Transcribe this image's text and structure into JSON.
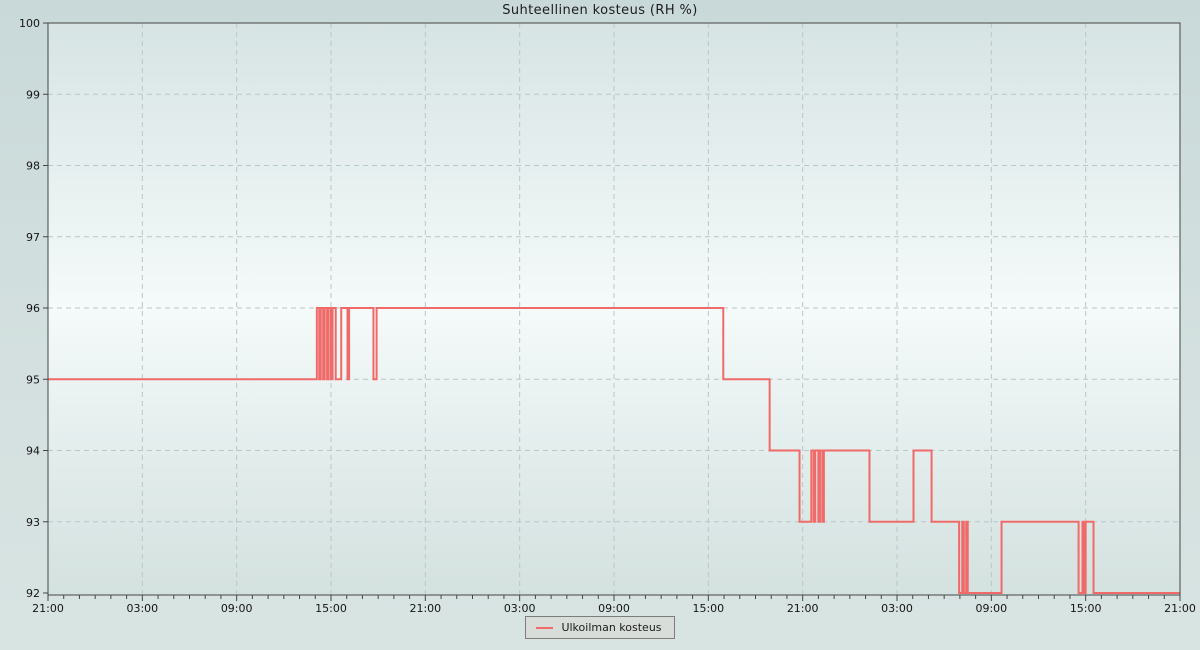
{
  "chart_data": {
    "type": "line",
    "step": true,
    "title": "Suhteellinen kosteus (RH %)",
    "legend_position": "bottom-center",
    "grid": "dashed",
    "x_axis": {
      "unit": "hours",
      "range": [
        0,
        72
      ],
      "major_tick_hours": 6,
      "minor_tick_hours": 1,
      "labels": [
        "21:00",
        "03:00",
        "09:00",
        "15:00",
        "21:00",
        "03:00",
        "09:00",
        "15:00",
        "21:00",
        "03:00",
        "09:00",
        "15:00",
        "21:00"
      ]
    },
    "y_axis": {
      "label": "RH %",
      "range": [
        92,
        100
      ],
      "tick_step": 1,
      "labels": [
        "100",
        "99",
        "98",
        "97",
        "96",
        "95",
        "94",
        "93",
        "92"
      ]
    },
    "series": [
      {
        "name": "Ulkoilman kosteus",
        "color": "#f16a6a",
        "segments_hours_value": [
          [
            0,
            17.1,
            95
          ],
          [
            17.1,
            17.25,
            96
          ],
          [
            17.25,
            17.35,
            95
          ],
          [
            17.35,
            17.5,
            96
          ],
          [
            17.5,
            17.6,
            95
          ],
          [
            17.6,
            17.75,
            96
          ],
          [
            17.75,
            17.85,
            95
          ],
          [
            17.85,
            18.0,
            96
          ],
          [
            18.0,
            18.1,
            95
          ],
          [
            18.1,
            18.3,
            96
          ],
          [
            18.3,
            18.65,
            95
          ],
          [
            18.65,
            19.05,
            96
          ],
          [
            19.05,
            19.15,
            95
          ],
          [
            19.15,
            20.7,
            96
          ],
          [
            20.7,
            20.9,
            95
          ],
          [
            20.9,
            42.95,
            96
          ],
          [
            42.95,
            45.9,
            95
          ],
          [
            45.9,
            47.8,
            94
          ],
          [
            47.8,
            48.55,
            93
          ],
          [
            48.55,
            48.7,
            94
          ],
          [
            48.7,
            48.8,
            93
          ],
          [
            48.8,
            49.0,
            94
          ],
          [
            49.0,
            49.1,
            93
          ],
          [
            49.1,
            49.25,
            94
          ],
          [
            49.25,
            49.35,
            93
          ],
          [
            49.35,
            52.25,
            94
          ],
          [
            52.25,
            55.05,
            93
          ],
          [
            55.05,
            56.2,
            94
          ],
          [
            56.2,
            57.95,
            93
          ],
          [
            57.95,
            58.15,
            92
          ],
          [
            58.15,
            58.25,
            93
          ],
          [
            58.25,
            58.4,
            92
          ],
          [
            58.4,
            58.5,
            93
          ],
          [
            58.5,
            60.65,
            92
          ],
          [
            60.65,
            65.55,
            93
          ],
          [
            65.55,
            65.8,
            92
          ],
          [
            65.8,
            65.9,
            93
          ],
          [
            65.9,
            66.0,
            92
          ],
          [
            66.0,
            66.5,
            93
          ],
          [
            66.5,
            72,
            92
          ]
        ]
      }
    ],
    "colors": {
      "line": "#f16a6a",
      "grid": "#b9c7c7",
      "axis": "#454545",
      "tick_text": "#151515",
      "legend_bg": "#d8ddda",
      "legend_border": "#7d7d7d"
    }
  },
  "legend": {
    "label": "Ulkoilman kosteus"
  }
}
